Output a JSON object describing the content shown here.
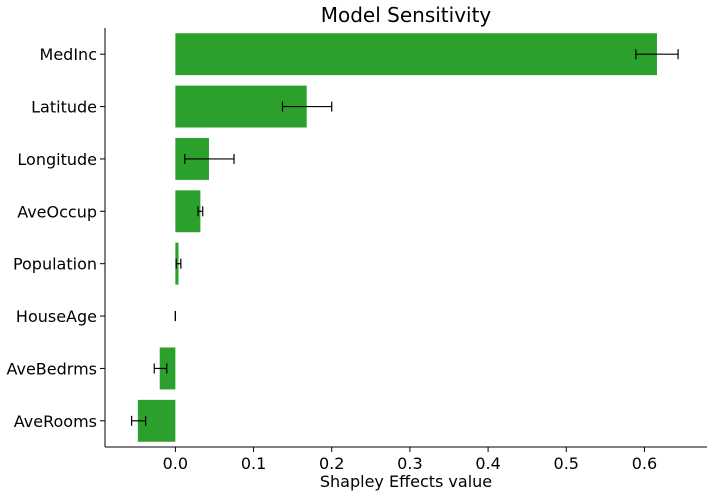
{
  "chart_data": {
    "type": "bar",
    "orientation": "horizontal",
    "title": "Model Sensitivity",
    "xlabel": "Shapley Effects value",
    "ylabel": "",
    "xlim": [
      -0.09,
      0.68
    ],
    "xticks": [
      0.0,
      0.1,
      0.2,
      0.3,
      0.4,
      0.5,
      0.6
    ],
    "xtick_labels": [
      "0.0",
      "0.1",
      "0.2",
      "0.3",
      "0.4",
      "0.5",
      "0.6"
    ],
    "grid": false,
    "bar_color": "#2ca02c",
    "categories": [
      "MedInc",
      "Latitude",
      "Longitude",
      "AveOccup",
      "Population",
      "HouseAge",
      "AveBedrms",
      "AveRooms"
    ],
    "values": [
      0.616,
      0.168,
      0.043,
      0.032,
      0.004,
      0.0,
      -0.02,
      -0.048
    ],
    "error_low": [
      0.589,
      0.137,
      0.012,
      0.029,
      0.001,
      0.0,
      -0.027,
      -0.056
    ],
    "error_high": [
      0.643,
      0.2,
      0.075,
      0.035,
      0.007,
      0.0,
      -0.011,
      -0.038
    ]
  }
}
